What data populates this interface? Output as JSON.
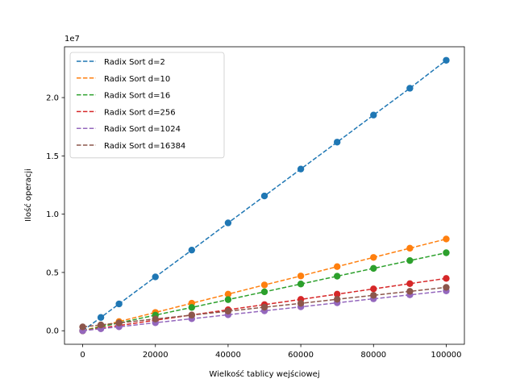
{
  "chart_data": {
    "type": "line",
    "xlabel": "Wielkość tablicy wejściowej",
    "ylabel": "Ilość operacji",
    "offset_text": "1e7",
    "xlim": [
      -5000,
      105000
    ],
    "ylim": [
      -1160000,
      24360000
    ],
    "xticks": [
      0,
      20000,
      40000,
      60000,
      80000,
      100000
    ],
    "xtick_labels": [
      "0",
      "20000",
      "40000",
      "60000",
      "80000",
      "100000"
    ],
    "yticks": [
      0,
      5000000,
      10000000,
      15000000,
      20000000
    ],
    "ytick_labels": [
      "0.0",
      "0.5",
      "1.0",
      "1.5",
      "2.0"
    ],
    "grid": false,
    "legend_position": "top-left",
    "x": [
      0,
      5000,
      10000,
      20000,
      30000,
      40000,
      50000,
      60000,
      70000,
      80000,
      90000,
      100000
    ],
    "series": [
      {
        "name": "Radix Sort d=2",
        "color": "#1f77b4",
        "values": [
          0,
          1140000,
          2300000,
          4620000,
          6920000,
          9250000,
          11560000,
          13870000,
          16180000,
          18500000,
          20800000,
          23200000
        ]
      },
      {
        "name": "Radix Sort d=10",
        "color": "#ff7f0e",
        "values": [
          0,
          400000,
          790000,
          1570000,
          2360000,
          3140000,
          3930000,
          4700000,
          5500000,
          6290000,
          7080000,
          7870000
        ]
      },
      {
        "name": "Radix Sort d=16",
        "color": "#2ca02c",
        "values": [
          0,
          340000,
          670000,
          1340000,
          2000000,
          2670000,
          3340000,
          4010000,
          4680000,
          5350000,
          6020000,
          6690000
        ]
      },
      {
        "name": "Radix Sort d=256",
        "color": "#d62728",
        "values": [
          0,
          230000,
          450000,
          900000,
          1350000,
          1800000,
          2240000,
          2690000,
          3140000,
          3590000,
          4040000,
          4490000
        ]
      },
      {
        "name": "Radix Sort d=1024",
        "color": "#9467bd",
        "values": [
          0,
          170000,
          340000,
          690000,
          1030000,
          1370000,
          1710000,
          2050000,
          2400000,
          2740000,
          3080000,
          3420000
        ]
      },
      {
        "name": "Radix Sort d=16384",
        "color": "#8c564b",
        "values": [
          330000,
          500000,
          670000,
          1010000,
          1340000,
          1680000,
          2020000,
          2350000,
          2700000,
          3040000,
          3380000,
          3720000
        ]
      }
    ]
  }
}
